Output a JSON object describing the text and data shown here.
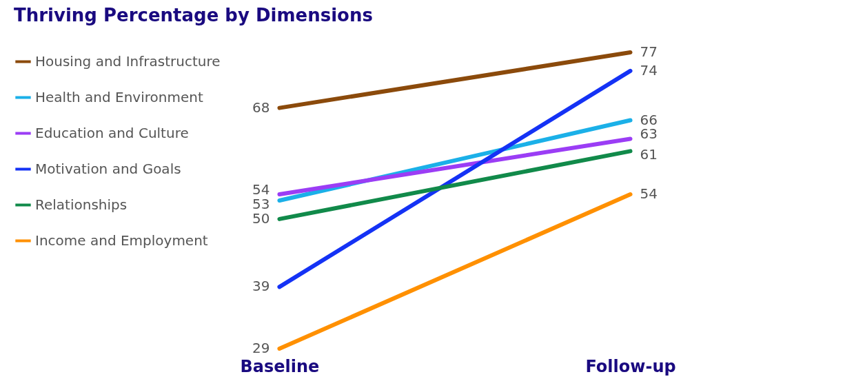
{
  "chart_data": {
    "type": "line",
    "title": "Thriving Percentage by Dimensions",
    "categories": [
      "Baseline",
      "Follow-up"
    ],
    "series": [
      {
        "name": "Housing and Infrastructure",
        "color": "#8b4a0b",
        "values": [
          68,
          77
        ]
      },
      {
        "name": "Health and Environment",
        "color": "#1bb0e8",
        "values": [
          53,
          66
        ]
      },
      {
        "name": "Education and Culture",
        "color": "#9b3df5",
        "values": [
          54,
          63
        ]
      },
      {
        "name": "Motivation and Goals",
        "color": "#1432f5",
        "values": [
          39,
          74
        ]
      },
      {
        "name": "Relationships",
        "color": "#118a4a",
        "values": [
          50,
          61
        ]
      },
      {
        "name": "Income and Employment",
        "color": "#ff9000",
        "values": [
          29,
          54
        ]
      }
    ],
    "data_labels": true,
    "legend": "left",
    "grid": false
  }
}
